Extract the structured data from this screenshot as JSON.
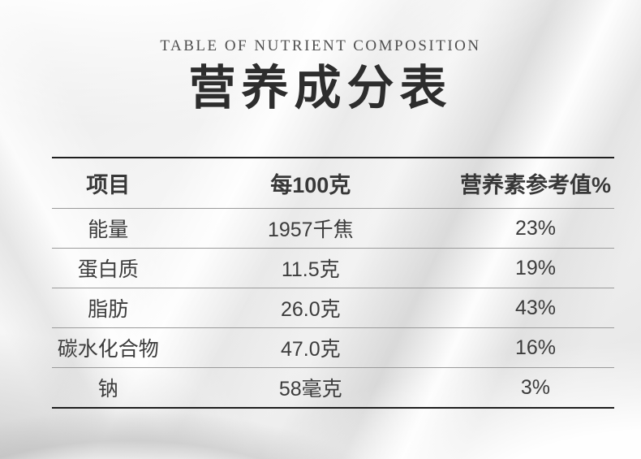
{
  "header": {
    "subtitle": "TABLE OF NUTRIENT COMPOSITION",
    "title": "营养成分表"
  },
  "table": {
    "columns": {
      "item": "项目",
      "per_100g": "每100克",
      "nrv_percent": "营养素参考值%"
    },
    "rows": [
      {
        "item": "能量",
        "per_100g": "1957千焦",
        "nrv_percent": "23%"
      },
      {
        "item": "蛋白质",
        "per_100g": "11.5克",
        "nrv_percent": "19%"
      },
      {
        "item": "脂肪",
        "per_100g": "26.0克",
        "nrv_percent": "43%"
      },
      {
        "item": "碳水化合物",
        "per_100g": "47.0克",
        "nrv_percent": "16%"
      },
      {
        "item": "钠",
        "per_100g": "58毫克",
        "nrv_percent": "3%"
      }
    ]
  },
  "colors": {
    "title_text": "#2d2d2d",
    "subtitle_text": "#4f4f4f",
    "body_text": "#3c3c3c",
    "table_outer_border": "#1f1f1f",
    "table_divider": "#9a9a9a",
    "background_base": "#f0f0f0"
  }
}
